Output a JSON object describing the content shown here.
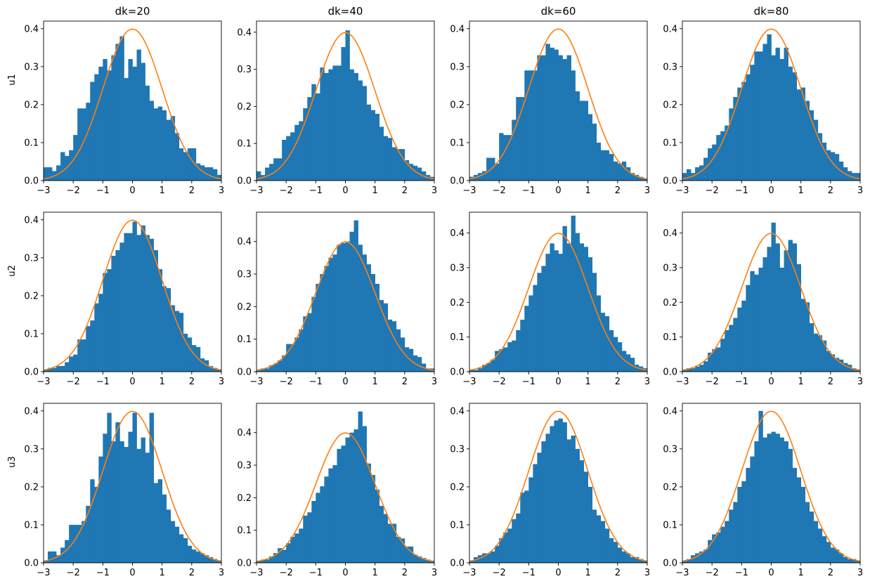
{
  "colors": {
    "bars": "#1f77b4",
    "curve": "#ff7f0e",
    "axes": "#000000"
  },
  "chart_data": {
    "type": "bar",
    "layout": "3 rows x 4 columns of histogram panels, each overlaid with a standard normal density curve",
    "column_titles": [
      "dk=20",
      "dk=40",
      "dk=60",
      "dk=80"
    ],
    "row_labels": [
      "u1",
      "u2",
      "u3"
    ],
    "xlim": [
      -3,
      3
    ],
    "x_ticks": [
      -3,
      -2,
      -1,
      0,
      1,
      2,
      3
    ],
    "bin_count": 42,
    "bin_edges_range": [
      -3,
      3
    ],
    "grid": false,
    "legend": "none",
    "curve": {
      "name": "",
      "type": "line",
      "formula": "standard normal pdf",
      "peak": 0.399
    },
    "panels": [
      {
        "row": "u1",
        "column": "dk=20",
        "ylim": [
          0,
          0.42
        ],
        "y_ticks": [
          0,
          0.1,
          0.2,
          0.3,
          0.4
        ],
        "values": [
          0.035,
          0.035,
          0.025,
          0.04,
          0.075,
          0.065,
          0.08,
          0.12,
          0.19,
          0.19,
          0.205,
          0.26,
          0.28,
          0.3,
          0.32,
          0.29,
          0.33,
          0.36,
          0.38,
          0.27,
          0.32,
          0.3,
          0.345,
          0.31,
          0.25,
          0.21,
          0.19,
          0.195,
          0.185,
          0.16,
          0.17,
          0.125,
          0.085,
          0.075,
          0.085,
          0.085,
          0.045,
          0.04,
          0.035,
          0.035,
          0.03,
          0.015
        ]
      },
      {
        "row": "u1",
        "column": "dk=40",
        "ylim": [
          0,
          0.43
        ],
        "y_ticks": [
          0,
          0.1,
          0.2,
          0.3,
          0.4
        ],
        "values": [
          0.025,
          0.015,
          0.035,
          0.045,
          0.06,
          0.06,
          0.11,
          0.12,
          0.13,
          0.15,
          0.16,
          0.195,
          0.225,
          0.26,
          0.235,
          0.305,
          0.29,
          0.3,
          0.31,
          0.31,
          0.36,
          0.405,
          0.3,
          0.29,
          0.27,
          0.255,
          0.205,
          0.19,
          0.18,
          0.145,
          0.12,
          0.115,
          0.09,
          0.085,
          0.085,
          0.055,
          0.045,
          0.04,
          0.035,
          0.025,
          0.015,
          0.01
        ]
      },
      {
        "row": "u1",
        "column": "dk=60",
        "ylim": [
          0,
          0.42
        ],
        "y_ticks": [
          0,
          0.1,
          0.2,
          0.3,
          0.4
        ],
        "values": [
          0.01,
          0.015,
          0.02,
          0.025,
          0.06,
          0.06,
          0.045,
          0.125,
          0.12,
          0.12,
          0.16,
          0.22,
          0.22,
          0.29,
          0.29,
          0.29,
          0.33,
          0.33,
          0.36,
          0.35,
          0.345,
          0.33,
          0.32,
          0.33,
          0.29,
          0.235,
          0.21,
          0.21,
          0.175,
          0.15,
          0.1,
          0.08,
          0.08,
          0.07,
          0.05,
          0.045,
          0.05,
          0.035,
          0.02,
          0.015,
          0.01,
          0.005
        ]
      },
      {
        "row": "u1",
        "column": "dk=80",
        "ylim": [
          0,
          0.42
        ],
        "y_ticks": [
          0,
          0.1,
          0.2,
          0.3,
          0.4
        ],
        "values": [
          0.02,
          0.03,
          0.02,
          0.035,
          0.04,
          0.06,
          0.085,
          0.095,
          0.12,
          0.13,
          0.145,
          0.19,
          0.22,
          0.245,
          0.26,
          0.28,
          0.305,
          0.34,
          0.34,
          0.36,
          0.385,
          0.33,
          0.35,
          0.32,
          0.35,
          0.3,
          0.285,
          0.24,
          0.245,
          0.21,
          0.185,
          0.16,
          0.125,
          0.1,
          0.08,
          0.075,
          0.07,
          0.05,
          0.035,
          0.025,
          0.02,
          0.02
        ]
      },
      {
        "row": "u2",
        "column": "dk=20",
        "ylim": [
          0,
          0.42
        ],
        "y_ticks": [
          0,
          0.1,
          0.2,
          0.3,
          0.4
        ],
        "values": [
          0.005,
          0.01,
          0.01,
          0.015,
          0.015,
          0.025,
          0.04,
          0.045,
          0.085,
          0.085,
          0.12,
          0.135,
          0.18,
          0.205,
          0.26,
          0.27,
          0.305,
          0.32,
          0.34,
          0.365,
          0.365,
          0.395,
          0.36,
          0.385,
          0.36,
          0.35,
          0.32,
          0.27,
          0.225,
          0.22,
          0.175,
          0.16,
          0.155,
          0.1,
          0.09,
          0.07,
          0.065,
          0.035,
          0.03,
          0.015,
          0.01,
          0.005
        ]
      },
      {
        "row": "u2",
        "column": "dk=40",
        "ylim": [
          0,
          0.49
        ],
        "y_ticks": [
          0,
          0.1,
          0.2,
          0.3,
          0.4
        ],
        "values": [
          0.005,
          0.01,
          0.01,
          0.02,
          0.025,
          0.035,
          0.05,
          0.085,
          0.085,
          0.105,
          0.13,
          0.17,
          0.18,
          0.23,
          0.27,
          0.3,
          0.325,
          0.35,
          0.36,
          0.39,
          0.395,
          0.4,
          0.43,
          0.465,
          0.39,
          0.36,
          0.33,
          0.3,
          0.27,
          0.22,
          0.21,
          0.16,
          0.155,
          0.13,
          0.105,
          0.075,
          0.07,
          0.05,
          0.045,
          0.025,
          0.01,
          0.01
        ]
      },
      {
        "row": "u2",
        "column": "dk=60",
        "ylim": [
          0,
          0.46
        ],
        "y_ticks": [
          0,
          0.1,
          0.2,
          0.3,
          0.4
        ],
        "values": [
          0.005,
          0.005,
          0.01,
          0.02,
          0.025,
          0.035,
          0.06,
          0.065,
          0.07,
          0.085,
          0.09,
          0.12,
          0.15,
          0.19,
          0.22,
          0.25,
          0.285,
          0.305,
          0.34,
          0.37,
          0.35,
          0.34,
          0.42,
          0.37,
          0.45,
          0.4,
          0.37,
          0.36,
          0.33,
          0.285,
          0.22,
          0.17,
          0.16,
          0.12,
          0.1,
          0.085,
          0.06,
          0.05,
          0.04,
          0.02,
          0.015,
          0.01
        ]
      },
      {
        "row": "u2",
        "column": "dk=80",
        "ylim": [
          0,
          0.46
        ],
        "y_ticks": [
          0,
          0.1,
          0.2,
          0.3,
          0.4
        ],
        "values": [
          0.005,
          0.01,
          0.01,
          0.015,
          0.02,
          0.03,
          0.055,
          0.065,
          0.07,
          0.095,
          0.12,
          0.135,
          0.155,
          0.185,
          0.205,
          0.25,
          0.29,
          0.28,
          0.3,
          0.33,
          0.36,
          0.43,
          0.37,
          0.3,
          0.35,
          0.38,
          0.37,
          0.31,
          0.21,
          0.2,
          0.14,
          0.11,
          0.105,
          0.09,
          0.06,
          0.05,
          0.04,
          0.035,
          0.025,
          0.02,
          0.01,
          0.005
        ]
      },
      {
        "row": "u3",
        "column": "dk=20",
        "ylim": [
          0,
          0.42
        ],
        "y_ticks": [
          0,
          0.1,
          0.2,
          0.3,
          0.4
        ],
        "values": [
          0.005,
          0.03,
          0.03,
          0.02,
          0.04,
          0.06,
          0.1,
          0.1,
          0.1,
          0.11,
          0.15,
          0.22,
          0.2,
          0.28,
          0.34,
          0.395,
          0.32,
          0.37,
          0.32,
          0.305,
          0.345,
          0.395,
          0.3,
          0.33,
          0.29,
          0.395,
          0.21,
          0.22,
          0.18,
          0.14,
          0.11,
          0.095,
          0.075,
          0.065,
          0.045,
          0.035,
          0.03,
          0.025,
          0.02,
          0.015,
          0.01,
          0.005
        ]
      },
      {
        "row": "u3",
        "column": "dk=40",
        "ylim": [
          0,
          0.49
        ],
        "y_ticks": [
          0,
          0.1,
          0.2,
          0.3,
          0.4
        ],
        "values": [
          0.005,
          0.01,
          0.01,
          0.02,
          0.03,
          0.045,
          0.04,
          0.06,
          0.08,
          0.09,
          0.105,
          0.145,
          0.155,
          0.19,
          0.215,
          0.235,
          0.265,
          0.29,
          0.3,
          0.35,
          0.36,
          0.385,
          0.4,
          0.41,
          0.465,
          0.42,
          0.305,
          0.27,
          0.225,
          0.175,
          0.15,
          0.12,
          0.12,
          0.08,
          0.075,
          0.05,
          0.05,
          0.025,
          0.02,
          0.015,
          0.01,
          0.005
        ]
      },
      {
        "row": "u3",
        "column": "dk=60",
        "ylim": [
          0,
          0.42
        ],
        "y_ticks": [
          0,
          0.1,
          0.2,
          0.3,
          0.4
        ],
        "values": [
          0.005,
          0.015,
          0.02,
          0.025,
          0.025,
          0.03,
          0.045,
          0.065,
          0.08,
          0.09,
          0.115,
          0.13,
          0.185,
          0.19,
          0.225,
          0.26,
          0.29,
          0.32,
          0.34,
          0.36,
          0.375,
          0.38,
          0.37,
          0.325,
          0.335,
          0.3,
          0.27,
          0.24,
          0.2,
          0.14,
          0.125,
          0.11,
          0.09,
          0.065,
          0.055,
          0.04,
          0.03,
          0.025,
          0.015,
          0.015,
          0.01,
          0.005
        ]
      },
      {
        "row": "u3",
        "column": "dk=80",
        "ylim": [
          0,
          0.42
        ],
        "y_ticks": [
          0,
          0.1,
          0.2,
          0.3,
          0.4
        ],
        "values": [
          0.005,
          0.01,
          0.02,
          0.025,
          0.03,
          0.035,
          0.06,
          0.075,
          0.08,
          0.095,
          0.11,
          0.14,
          0.16,
          0.2,
          0.215,
          0.25,
          0.28,
          0.32,
          0.4,
          0.33,
          0.34,
          0.345,
          0.34,
          0.33,
          0.32,
          0.3,
          0.25,
          0.225,
          0.2,
          0.16,
          0.135,
          0.11,
          0.09,
          0.07,
          0.055,
          0.04,
          0.035,
          0.025,
          0.015,
          0.01,
          0.01,
          0.005
        ]
      }
    ]
  }
}
